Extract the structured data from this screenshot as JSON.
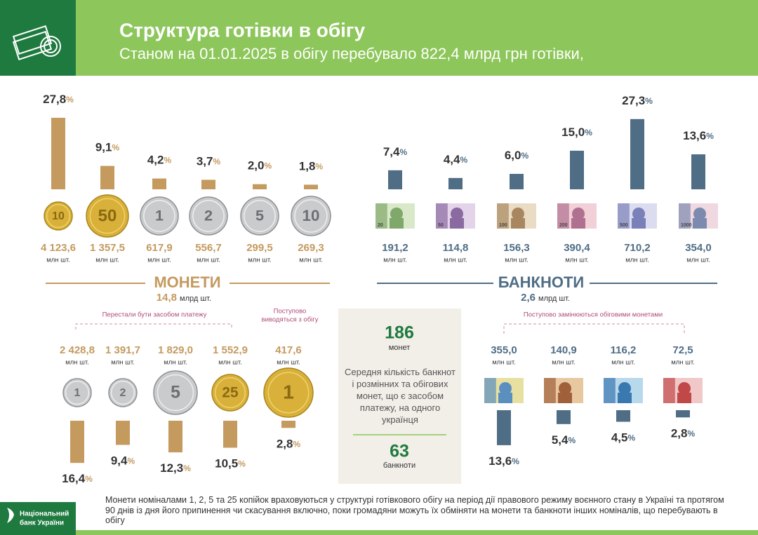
{
  "header": {
    "title": "Структура готівки в обігу",
    "subtitle": "Станом на 01.01.2025 в обігу перебувало 822,4 млрд грн готівки,"
  },
  "coins": {
    "title": "МОНЕТИ",
    "total": "14,8",
    "total_unit": "млрд шт.",
    "unit": "млн шт.",
    "items": [
      {
        "face": "10",
        "count": "4 123,6",
        "share": 27.8,
        "share_label": "27,8%"
      },
      {
        "face": "50",
        "count": "1 357,5",
        "share": 9.1,
        "share_label": "9,1%"
      },
      {
        "face": "1",
        "count": "617,9",
        "share": 4.2,
        "share_label": "4,2%"
      },
      {
        "face": "2",
        "count": "556,7",
        "share": 3.7,
        "share_label": "3,7%"
      },
      {
        "face": "5",
        "count": "299,5",
        "share": 2.0,
        "share_label": "2,0%"
      },
      {
        "face": "10",
        "count": "269,3",
        "share": 1.8,
        "share_label": "1,8%"
      }
    ]
  },
  "banknotes": {
    "title": "БАНКНОТИ",
    "total": "2,6",
    "total_unit": "млрд шт.",
    "unit": "млн шт.",
    "items": [
      {
        "face": "20",
        "count": "191,2",
        "share": 7.4,
        "share_label": "7,4%"
      },
      {
        "face": "50",
        "count": "114,8",
        "share": 4.4,
        "share_label": "4,4%"
      },
      {
        "face": "100",
        "count": "156,3",
        "share": 6.0,
        "share_label": "6,0%"
      },
      {
        "face": "200",
        "count": "390,4",
        "share": 15.0,
        "share_label": "15,0%"
      },
      {
        "face": "500",
        "count": "710,2",
        "share": 27.3,
        "share_label": "27,3%"
      },
      {
        "face": "1000",
        "count": "354,0",
        "share": 13.6,
        "share_label": "13,6%"
      }
    ]
  },
  "withdrawn_coins": {
    "note_invalid": "Перестали бути засобом платежу",
    "note_phasing": [
      "Поступово",
      "виводяться з обігу"
    ],
    "unit": "млн шт.",
    "items": [
      {
        "face": "1",
        "count": "2 428,8",
        "share": 16.4,
        "share_label": "16,4%"
      },
      {
        "face": "2",
        "count": "1 391,7",
        "share": 9.4,
        "share_label": "9,4%"
      },
      {
        "face": "5",
        "count": "1 829,0",
        "share": 12.3,
        "share_label": "12,3%"
      },
      {
        "face": "25",
        "count": "1 552,9",
        "share": 10.5,
        "share_label": "10,5%"
      },
      {
        "face": "1",
        "count": "417,6",
        "share": 2.8,
        "share_label": "2,8%"
      }
    ]
  },
  "withdrawn_banknotes": {
    "note": "Поступово замінюються обіговими монетами",
    "unit": "млн шт.",
    "items": [
      {
        "count": "355,0",
        "share": 13.6,
        "share_label": "13,6%"
      },
      {
        "count": "140,9",
        "share": 5.4,
        "share_label": "5,4%"
      },
      {
        "count": "116,2",
        "share": 4.5,
        "share_label": "4,5%"
      },
      {
        "count": "72,5",
        "share": 2.8,
        "share_label": "2,8%"
      }
    ]
  },
  "per_capita": {
    "coins": "186",
    "coins_label": "монет",
    "text": "Середня кількість банкнот і розмінних та обігових монет, що є засобом платежу, на одного українця",
    "banknotes": "63",
    "banknotes_label": "банкноти"
  },
  "footer": {
    "logo": [
      "Національний",
      "банк України"
    ],
    "note": "Монети номіналами 1, 2, 5 та 25 копійок враховуються у структурі готівкового обігу на період дії правового режиму воєнного стану в Україні та протягом 90 днів із дня його припинення чи скасування включно, поки громадяни можуть їх обміняти на монети та банкноти інших номіналів, що перебувають в обігу"
  }
}
